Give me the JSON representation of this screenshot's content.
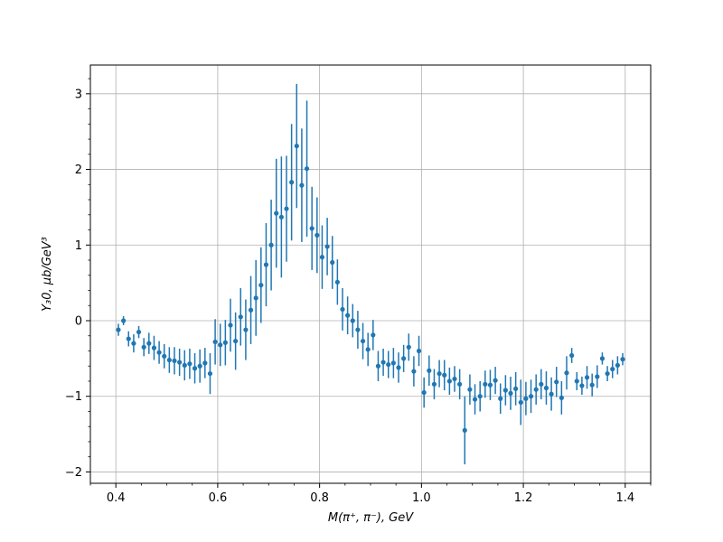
{
  "chart_data": {
    "type": "scatter",
    "title": "",
    "xlabel": "M(π⁺, π⁻), GeV",
    "ylabel": "Y₃0, μb/GeV³",
    "xlim": [
      0.35,
      1.45
    ],
    "ylim": [
      -2.15,
      3.38
    ],
    "grid": true,
    "error_bars": true,
    "xticks": [
      0.4,
      0.6,
      0.8,
      1.0,
      1.2,
      1.4
    ],
    "xtick_labels": [
      "0.4",
      "0.6",
      "0.8",
      "1.0",
      "1.2",
      "1.4"
    ],
    "yticks": [
      -2,
      -1,
      0,
      1,
      2,
      3
    ],
    "ytick_labels": [
      "−2",
      "−1",
      "0",
      "1",
      "2",
      "3"
    ],
    "colors": {
      "series": "#1f77b4"
    },
    "series": [
      {
        "points": [
          [
            0.405,
            -0.12,
            0.08
          ],
          [
            0.415,
            0.0,
            0.06
          ],
          [
            0.425,
            -0.24,
            0.1
          ],
          [
            0.435,
            -0.3,
            0.12
          ],
          [
            0.445,
            -0.15,
            0.08
          ],
          [
            0.455,
            -0.35,
            0.12
          ],
          [
            0.465,
            -0.3,
            0.14
          ],
          [
            0.475,
            -0.36,
            0.16
          ],
          [
            0.485,
            -0.42,
            0.15
          ],
          [
            0.495,
            -0.47,
            0.16
          ],
          [
            0.505,
            -0.52,
            0.17
          ],
          [
            0.515,
            -0.53,
            0.18
          ],
          [
            0.525,
            -0.55,
            0.18
          ],
          [
            0.535,
            -0.59,
            0.2
          ],
          [
            0.545,
            -0.57,
            0.2
          ],
          [
            0.555,
            -0.63,
            0.2
          ],
          [
            0.565,
            -0.6,
            0.22
          ],
          [
            0.575,
            -0.56,
            0.2
          ],
          [
            0.585,
            -0.7,
            0.27
          ],
          [
            0.595,
            -0.28,
            0.3
          ],
          [
            0.605,
            -0.32,
            0.28
          ],
          [
            0.615,
            -0.29,
            0.3
          ],
          [
            0.625,
            -0.06,
            0.35
          ],
          [
            0.635,
            -0.27,
            0.38
          ],
          [
            0.645,
            0.05,
            0.38
          ],
          [
            0.655,
            -0.12,
            0.4
          ],
          [
            0.665,
            0.14,
            0.45
          ],
          [
            0.675,
            0.3,
            0.5
          ],
          [
            0.685,
            0.47,
            0.5
          ],
          [
            0.695,
            0.74,
            0.55
          ],
          [
            0.705,
            1.0,
            0.6
          ],
          [
            0.715,
            1.42,
            0.72
          ],
          [
            0.725,
            1.37,
            0.8
          ],
          [
            0.735,
            1.48,
            0.7
          ],
          [
            0.745,
            1.83,
            0.77
          ],
          [
            0.755,
            2.31,
            0.82
          ],
          [
            0.765,
            1.79,
            0.75
          ],
          [
            0.775,
            2.01,
            0.9
          ],
          [
            0.785,
            1.22,
            0.55
          ],
          [
            0.795,
            1.13,
            0.5
          ],
          [
            0.805,
            0.84,
            0.42
          ],
          [
            0.815,
            0.98,
            0.38
          ],
          [
            0.825,
            0.77,
            0.35
          ],
          [
            0.835,
            0.51,
            0.3
          ],
          [
            0.845,
            0.15,
            0.28
          ],
          [
            0.855,
            0.07,
            0.25
          ],
          [
            0.865,
            0.0,
            0.22
          ],
          [
            0.875,
            -0.12,
            0.25
          ],
          [
            0.885,
            -0.27,
            0.24
          ],
          [
            0.895,
            -0.38,
            0.22
          ],
          [
            0.905,
            -0.19,
            0.2
          ],
          [
            0.915,
            -0.6,
            0.2
          ],
          [
            0.925,
            -0.55,
            0.18
          ],
          [
            0.935,
            -0.58,
            0.18
          ],
          [
            0.945,
            -0.56,
            0.2
          ],
          [
            0.955,
            -0.62,
            0.2
          ],
          [
            0.965,
            -0.5,
            0.18
          ],
          [
            0.975,
            -0.35,
            0.18
          ],
          [
            0.985,
            -0.67,
            0.2
          ],
          [
            0.995,
            -0.4,
            0.2
          ],
          [
            1.005,
            -0.95,
            0.2
          ],
          [
            1.015,
            -0.66,
            0.2
          ],
          [
            1.025,
            -0.84,
            0.2
          ],
          [
            1.035,
            -0.7,
            0.18
          ],
          [
            1.045,
            -0.72,
            0.2
          ],
          [
            1.055,
            -0.8,
            0.18
          ],
          [
            1.065,
            -0.77,
            0.17
          ],
          [
            1.075,
            -0.84,
            0.2
          ],
          [
            1.085,
            -1.45,
            0.45
          ],
          [
            1.095,
            -0.91,
            0.2
          ],
          [
            1.105,
            -1.04,
            0.2
          ],
          [
            1.115,
            -1.0,
            0.2
          ],
          [
            1.125,
            -0.84,
            0.18
          ],
          [
            1.135,
            -0.85,
            0.2
          ],
          [
            1.145,
            -0.79,
            0.18
          ],
          [
            1.155,
            -1.03,
            0.2
          ],
          [
            1.165,
            -0.92,
            0.2
          ],
          [
            1.175,
            -0.96,
            0.22
          ],
          [
            1.185,
            -0.9,
            0.22
          ],
          [
            1.195,
            -1.08,
            0.3
          ],
          [
            1.205,
            -1.03,
            0.22
          ],
          [
            1.215,
            -1.0,
            0.22
          ],
          [
            1.225,
            -0.91,
            0.2
          ],
          [
            1.235,
            -0.84,
            0.2
          ],
          [
            1.245,
            -0.89,
            0.22
          ],
          [
            1.255,
            -0.97,
            0.22
          ],
          [
            1.265,
            -0.81,
            0.2
          ],
          [
            1.275,
            -1.02,
            0.22
          ],
          [
            1.285,
            -0.69,
            0.22
          ],
          [
            1.295,
            -0.46,
            0.1
          ],
          [
            1.305,
            -0.8,
            0.12
          ],
          [
            1.315,
            -0.86,
            0.12
          ],
          [
            1.325,
            -0.75,
            0.15
          ],
          [
            1.335,
            -0.85,
            0.15
          ],
          [
            1.345,
            -0.74,
            0.15
          ],
          [
            1.355,
            -0.5,
            0.08
          ],
          [
            1.365,
            -0.7,
            0.1
          ],
          [
            1.375,
            -0.64,
            0.12
          ],
          [
            1.385,
            -0.59,
            0.12
          ],
          [
            1.395,
            -0.51,
            0.08
          ]
        ]
      }
    ]
  }
}
